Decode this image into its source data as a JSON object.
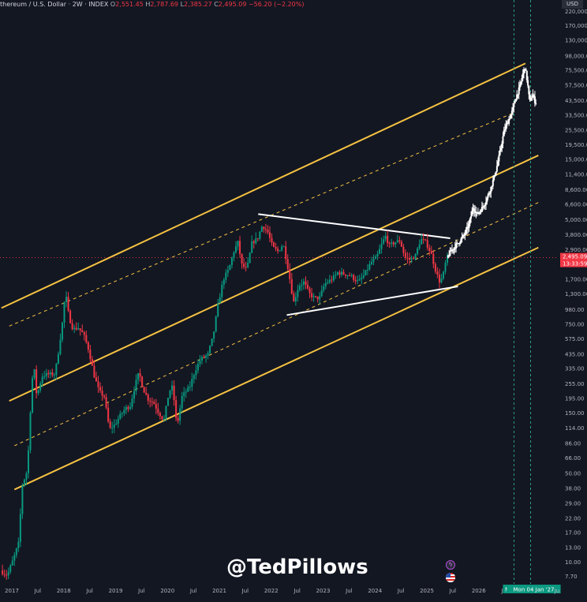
{
  "header": {
    "symbol": "thereum / U.S. Dollar · 2W · INDEX",
    "o_label": "O",
    "o_value": "2,551.45",
    "h_label": "H",
    "h_value": "2,787.69",
    "l_label": "L",
    "l_value": "2,385.27",
    "c_label": "C",
    "c_value": "2,495.09",
    "change": "−56.20 (−2.20%)"
  },
  "currency": "USD",
  "watermark": "@TedPillows",
  "price_tag": {
    "price": "2,495.09",
    "countdown": "13:33:59"
  },
  "colors": {
    "background": "#131722",
    "up": "#089981",
    "down": "#f23645",
    "channel": "#f5c142",
    "projection": "#ffffff",
    "vline": "#2a9d7f",
    "date_tag": "#0b9981"
  },
  "icons": [
    "lightning-icon",
    "us-flag-icon"
  ],
  "chart_data": {
    "type": "candlestick",
    "title": "",
    "y_scale": "log",
    "ylim": [
      6,
      300000
    ],
    "y_ticks": [
      7.7,
      10.0,
      13.0,
      17.0,
      22.0,
      29.0,
      38.0,
      50.0,
      66.0,
      86.0,
      114.0,
      150.0,
      195.0,
      255.0,
      335.0,
      435.0,
      575.0,
      750.0,
      980.0,
      1300.0,
      1700.0,
      2290.0,
      2900.0,
      3800.0,
      5000.0,
      6600.0,
      8600.0,
      11400.0,
      15000.0,
      19500.0,
      25500.0,
      33500.0,
      43500.0,
      57500.0,
      75500.0,
      98000.0,
      130000.0,
      170000.0,
      220000.0
    ],
    "y_tick_labels": [
      "7.70",
      "10.00",
      "13.00",
      "17.00",
      "22.00",
      "29.00",
      "38.00",
      "50.00",
      "66.00",
      "86.00",
      "114.00",
      "150.00",
      "195.00",
      "255.00",
      "335.00",
      "435.00",
      "575.00",
      "750.00",
      "980.00",
      "1,300.00",
      "1,700.00",
      "2,290.00",
      "2,900.00",
      "3,800.00",
      "5,000.00",
      "6,600.00",
      "8,600.00",
      "11,400.00",
      "15,000.00",
      "19,500.00",
      "25,500.00",
      "33,500.00",
      "43,500.00",
      "57,500.00",
      "75,500.00",
      "98,000.00",
      "130,000.00",
      "170,000.00",
      "220,000.00"
    ],
    "x_ticks": [
      {
        "t": 2017.0,
        "label": "2017"
      },
      {
        "t": 2017.5,
        "label": "Jul"
      },
      {
        "t": 2018.0,
        "label": "2018"
      },
      {
        "t": 2018.5,
        "label": "Jul"
      },
      {
        "t": 2019.0,
        "label": "2019"
      },
      {
        "t": 2019.5,
        "label": "Jul"
      },
      {
        "t": 2020.0,
        "label": "2020"
      },
      {
        "t": 2020.5,
        "label": "Jul"
      },
      {
        "t": 2021.0,
        "label": "2021"
      },
      {
        "t": 2021.5,
        "label": "Jul"
      },
      {
        "t": 2022.0,
        "label": "2022"
      },
      {
        "t": 2022.5,
        "label": "Jul"
      },
      {
        "t": 2023.0,
        "label": "2023"
      },
      {
        "t": 2023.5,
        "label": "Jul"
      },
      {
        "t": 2024.0,
        "label": "2024"
      },
      {
        "t": 2024.5,
        "label": "Jul"
      },
      {
        "t": 2025.0,
        "label": "2025"
      },
      {
        "t": 2025.5,
        "label": "Jul"
      },
      {
        "t": 2026.0,
        "label": "2026"
      },
      {
        "t": 2026.5,
        "label": "Jul"
      },
      {
        "t": 2027.0,
        "label": "2027"
      },
      {
        "t": 2027.5,
        "label": "Jul"
      }
    ],
    "date_tags": [
      {
        "t": 2026.68,
        "label": "Mon"
      },
      {
        "t": 2027.0,
        "label": "Mon 04 Jan '27"
      }
    ],
    "xlim": [
      2016.75,
      2028.1
    ],
    "price_path": [
      {
        "t": 2016.8,
        "p": 8.5
      },
      {
        "t": 2016.93,
        "p": 7.8
      },
      {
        "t": 2017.05,
        "p": 10.5
      },
      {
        "t": 2017.15,
        "p": 14
      },
      {
        "t": 2017.22,
        "p": 40
      },
      {
        "t": 2017.3,
        "p": 50
      },
      {
        "t": 2017.35,
        "p": 85
      },
      {
        "t": 2017.4,
        "p": 260
      },
      {
        "t": 2017.45,
        "p": 330
      },
      {
        "t": 2017.5,
        "p": 200
      },
      {
        "t": 2017.6,
        "p": 290
      },
      {
        "t": 2017.7,
        "p": 300
      },
      {
        "t": 2017.85,
        "p": 300
      },
      {
        "t": 2017.92,
        "p": 460
      },
      {
        "t": 2018.0,
        "p": 800
      },
      {
        "t": 2018.05,
        "p": 1350
      },
      {
        "t": 2018.12,
        "p": 850
      },
      {
        "t": 2018.2,
        "p": 680
      },
      {
        "t": 2018.3,
        "p": 700
      },
      {
        "t": 2018.4,
        "p": 620
      },
      {
        "t": 2018.5,
        "p": 470
      },
      {
        "t": 2018.6,
        "p": 300
      },
      {
        "t": 2018.7,
        "p": 220
      },
      {
        "t": 2018.8,
        "p": 200
      },
      {
        "t": 2018.9,
        "p": 110
      },
      {
        "t": 2019.0,
        "p": 120
      },
      {
        "t": 2019.1,
        "p": 140
      },
      {
        "t": 2019.2,
        "p": 160
      },
      {
        "t": 2019.3,
        "p": 170
      },
      {
        "t": 2019.4,
        "p": 250
      },
      {
        "t": 2019.47,
        "p": 310
      },
      {
        "t": 2019.55,
        "p": 230
      },
      {
        "t": 2019.65,
        "p": 190
      },
      {
        "t": 2019.75,
        "p": 180
      },
      {
        "t": 2019.85,
        "p": 150
      },
      {
        "t": 2019.95,
        "p": 130
      },
      {
        "t": 2020.05,
        "p": 220
      },
      {
        "t": 2020.12,
        "p": 240
      },
      {
        "t": 2020.2,
        "p": 115
      },
      {
        "t": 2020.3,
        "p": 200
      },
      {
        "t": 2020.45,
        "p": 240
      },
      {
        "t": 2020.55,
        "p": 320
      },
      {
        "t": 2020.65,
        "p": 390
      },
      {
        "t": 2020.8,
        "p": 430
      },
      {
        "t": 2020.9,
        "p": 600
      },
      {
        "t": 2021.0,
        "p": 1100
      },
      {
        "t": 2021.1,
        "p": 1700
      },
      {
        "t": 2021.2,
        "p": 2000
      },
      {
        "t": 2021.3,
        "p": 2800
      },
      {
        "t": 2021.38,
        "p": 3300
      },
      {
        "t": 2021.45,
        "p": 2200
      },
      {
        "t": 2021.55,
        "p": 2000
      },
      {
        "t": 2021.65,
        "p": 3300
      },
      {
        "t": 2021.75,
        "p": 3500
      },
      {
        "t": 2021.85,
        "p": 4500
      },
      {
        "t": 2021.95,
        "p": 4000
      },
      {
        "t": 2022.05,
        "p": 3000
      },
      {
        "t": 2022.15,
        "p": 2800
      },
      {
        "t": 2022.25,
        "p": 3200
      },
      {
        "t": 2022.35,
        "p": 2000
      },
      {
        "t": 2022.45,
        "p": 1100
      },
      {
        "t": 2022.55,
        "p": 1500
      },
      {
        "t": 2022.65,
        "p": 1600
      },
      {
        "t": 2022.75,
        "p": 1300
      },
      {
        "t": 2022.85,
        "p": 1200
      },
      {
        "t": 2022.95,
        "p": 1200
      },
      {
        "t": 2023.05,
        "p": 1550
      },
      {
        "t": 2023.2,
        "p": 1700
      },
      {
        "t": 2023.3,
        "p": 1900
      },
      {
        "t": 2023.45,
        "p": 1850
      },
      {
        "t": 2023.55,
        "p": 1800
      },
      {
        "t": 2023.7,
        "p": 1600
      },
      {
        "t": 2023.8,
        "p": 1800
      },
      {
        "t": 2023.95,
        "p": 2300
      },
      {
        "t": 2024.05,
        "p": 2500
      },
      {
        "t": 2024.15,
        "p": 3200
      },
      {
        "t": 2024.22,
        "p": 3700
      },
      {
        "t": 2024.3,
        "p": 3100
      },
      {
        "t": 2024.4,
        "p": 3300
      },
      {
        "t": 2024.5,
        "p": 3400
      },
      {
        "t": 2024.6,
        "p": 2500
      },
      {
        "t": 2024.7,
        "p": 2400
      },
      {
        "t": 2024.8,
        "p": 2600
      },
      {
        "t": 2024.9,
        "p": 3500
      },
      {
        "t": 2025.0,
        "p": 3300
      },
      {
        "t": 2025.1,
        "p": 2700
      },
      {
        "t": 2025.2,
        "p": 1900
      },
      {
        "t": 2025.27,
        "p": 1600
      },
      {
        "t": 2025.33,
        "p": 1800
      },
      {
        "t": 2025.4,
        "p": 2500
      }
    ],
    "projection_path": [
      {
        "t": 2025.4,
        "p": 2500
      },
      {
        "t": 2025.5,
        "p": 2900
      },
      {
        "t": 2025.6,
        "p": 3200
      },
      {
        "t": 2025.72,
        "p": 3700
      },
      {
        "t": 2025.82,
        "p": 4500
      },
      {
        "t": 2025.9,
        "p": 6200
      },
      {
        "t": 2025.98,
        "p": 5500
      },
      {
        "t": 2026.06,
        "p": 6000
      },
      {
        "t": 2026.15,
        "p": 7000
      },
      {
        "t": 2026.25,
        "p": 9000
      },
      {
        "t": 2026.35,
        "p": 12500
      },
      {
        "t": 2026.42,
        "p": 17000
      },
      {
        "t": 2026.5,
        "p": 25000
      },
      {
        "t": 2026.58,
        "p": 30000
      },
      {
        "t": 2026.66,
        "p": 36000
      },
      {
        "t": 2026.72,
        "p": 45000
      },
      {
        "t": 2026.8,
        "p": 55000
      },
      {
        "t": 2026.86,
        "p": 70000
      },
      {
        "t": 2026.9,
        "p": 80000
      },
      {
        "t": 2026.95,
        "p": 60000
      },
      {
        "t": 2026.99,
        "p": 42000
      },
      {
        "t": 2027.05,
        "p": 48000
      },
      {
        "t": 2027.1,
        "p": 42000
      }
    ],
    "channel_lines": [
      {
        "style": "solid",
        "from": {
          "t": 2016.8,
          "p": 1000
        },
        "to": {
          "t": 2026.9,
          "p": 85000
        }
      },
      {
        "style": "dashed",
        "from": {
          "t": 2016.95,
          "p": 720
        },
        "to": {
          "t": 2026.7,
          "p": 35000
        }
      },
      {
        "style": "solid",
        "from": {
          "t": 2016.95,
          "p": 185
        },
        "to": {
          "t": 2027.15,
          "p": 16000
        }
      },
      {
        "style": "dashed",
        "from": {
          "t": 2017.05,
          "p": 82
        },
        "to": {
          "t": 2027.15,
          "p": 6800
        }
      },
      {
        "style": "solid",
        "from": {
          "t": 2017.05,
          "p": 37
        },
        "to": {
          "t": 2027.15,
          "p": 3000
        }
      }
    ],
    "wedge_lines": [
      {
        "from": {
          "t": 2021.75,
          "p": 5500
        },
        "to": {
          "t": 2025.45,
          "p": 3550
        }
      },
      {
        "from": {
          "t": 2022.3,
          "p": 880
        },
        "to": {
          "t": 2025.6,
          "p": 1480
        }
      }
    ],
    "vertical_lines": [
      2026.68,
      2027.0
    ]
  }
}
